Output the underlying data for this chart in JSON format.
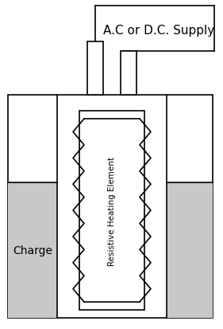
{
  "title": "A.C or D.C. Supply",
  "title_fontsize": 11,
  "bg_color": "#ffffff",
  "line_color": "#000000",
  "gray_color": "#c8c8c8",
  "charge_label": "Charge",
  "element_label": "Resistive Heating Element",
  "fig_width": 2.81,
  "fig_height": 4.14,
  "dpi": 100
}
